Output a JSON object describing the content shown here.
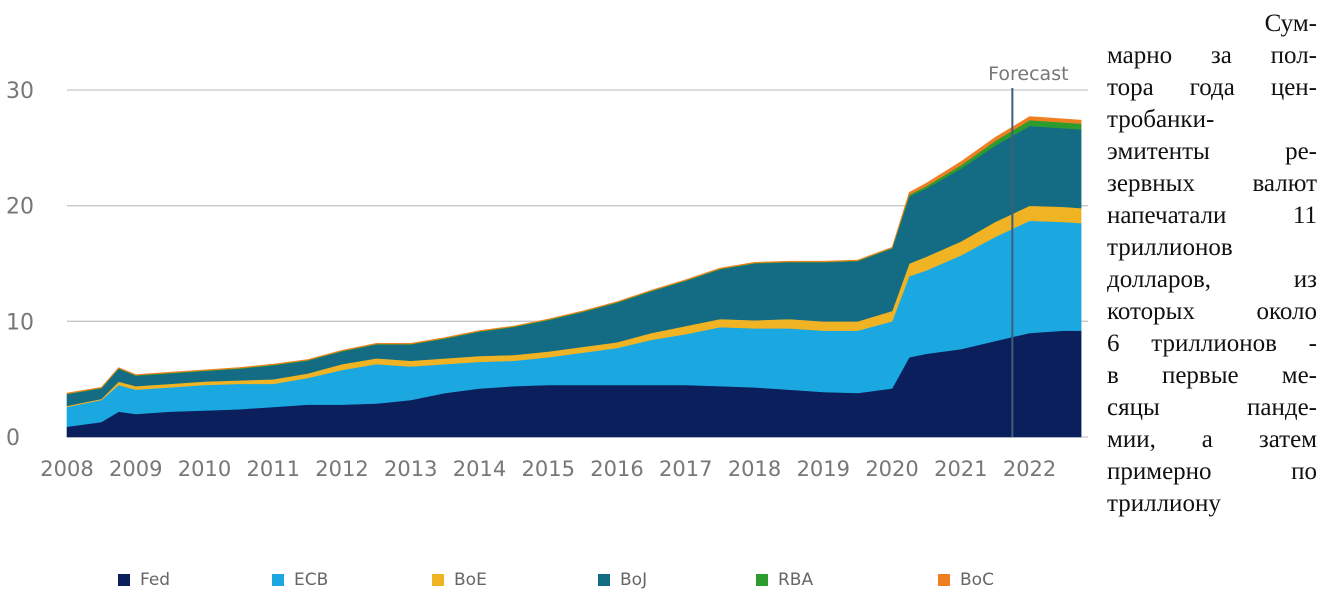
{
  "chart_data": {
    "type": "area",
    "stacked": true,
    "x": [
      2008.0,
      2008.5,
      2008.75,
      2009.0,
      2009.5,
      2010.0,
      2010.5,
      2011.0,
      2011.5,
      2012.0,
      2012.5,
      2013.0,
      2013.5,
      2014.0,
      2014.5,
      2015.0,
      2015.5,
      2016.0,
      2016.5,
      2017.0,
      2017.5,
      2018.0,
      2018.5,
      2019.0,
      2019.5,
      2020.0,
      2020.25,
      2020.5,
      2021.0,
      2021.5,
      2022.0,
      2022.5,
      2022.75
    ],
    "series": [
      {
        "name": "Fed",
        "color": "#0b1f5c",
        "values": [
          0.9,
          1.3,
          2.2,
          2.0,
          2.2,
          2.3,
          2.4,
          2.6,
          2.8,
          2.8,
          2.9,
          3.2,
          3.8,
          4.2,
          4.4,
          4.5,
          4.5,
          4.5,
          4.5,
          4.5,
          4.4,
          4.3,
          4.1,
          3.9,
          3.8,
          4.2,
          6.9,
          7.2,
          7.6,
          8.3,
          9.0,
          9.2,
          9.2
        ]
      },
      {
        "name": "ECB",
        "color": "#1ba8e0",
        "values": [
          1.7,
          1.9,
          2.3,
          2.1,
          2.1,
          2.2,
          2.2,
          2.0,
          2.3,
          3.0,
          3.4,
          2.9,
          2.5,
          2.3,
          2.2,
          2.4,
          2.8,
          3.2,
          3.9,
          4.4,
          5.1,
          5.1,
          5.3,
          5.3,
          5.4,
          5.8,
          7.0,
          7.2,
          8.1,
          9.0,
          9.7,
          9.4,
          9.3
        ]
      },
      {
        "name": "BoE",
        "color": "#f0b323",
        "values": [
          0.1,
          0.1,
          0.3,
          0.3,
          0.3,
          0.3,
          0.3,
          0.4,
          0.4,
          0.5,
          0.5,
          0.5,
          0.5,
          0.5,
          0.5,
          0.5,
          0.5,
          0.5,
          0.6,
          0.7,
          0.7,
          0.7,
          0.8,
          0.8,
          0.8,
          0.9,
          1.1,
          1.2,
          1.2,
          1.3,
          1.3,
          1.3,
          1.3
        ]
      },
      {
        "name": "BoJ",
        "color": "#136c84",
        "values": [
          1.0,
          0.9,
          1.1,
          0.9,
          0.9,
          0.9,
          1.0,
          1.2,
          1.1,
          1.1,
          1.2,
          1.4,
          1.7,
          2.1,
          2.4,
          2.7,
          3.0,
          3.4,
          3.6,
          3.9,
          4.3,
          4.9,
          4.9,
          5.1,
          5.2,
          5.4,
          5.8,
          5.9,
          6.3,
          6.6,
          6.9,
          6.8,
          6.8
        ]
      },
      {
        "name": "RBA",
        "color": "#2e9b2e",
        "values": [
          0.05,
          0.05,
          0.05,
          0.05,
          0.05,
          0.05,
          0.05,
          0.05,
          0.05,
          0.05,
          0.05,
          0.05,
          0.05,
          0.05,
          0.05,
          0.05,
          0.05,
          0.05,
          0.05,
          0.05,
          0.05,
          0.05,
          0.05,
          0.05,
          0.05,
          0.05,
          0.15,
          0.2,
          0.3,
          0.4,
          0.5,
          0.5,
          0.5
        ]
      },
      {
        "name": "BoC",
        "color": "#f07f23",
        "values": [
          0.05,
          0.05,
          0.05,
          0.05,
          0.05,
          0.05,
          0.05,
          0.05,
          0.05,
          0.05,
          0.05,
          0.05,
          0.05,
          0.05,
          0.05,
          0.05,
          0.05,
          0.05,
          0.05,
          0.05,
          0.05,
          0.05,
          0.05,
          0.05,
          0.05,
          0.05,
          0.2,
          0.25,
          0.3,
          0.3,
          0.3,
          0.3,
          0.3
        ]
      }
    ],
    "x_ticks": [
      "2008",
      "2009",
      "2010",
      "2011",
      "2012",
      "2013",
      "2014",
      "2015",
      "2016",
      "2017",
      "2018",
      "2019",
      "2020",
      "2021",
      "2022"
    ],
    "y_ticks": [
      "0",
      "10",
      "20",
      "30"
    ],
    "ylim": [
      0,
      30
    ],
    "xlim": [
      2008,
      2022.85
    ],
    "grid": true,
    "forecast_label": "Forecast",
    "forecast_x": 2021.75,
    "legend_position": "bottom"
  },
  "side_text": {
    "lines": [
      "Сум-",
      "марно за пол-",
      "тора года цен-",
      "тробанки-",
      "эмитенты ре-",
      "зервных валют",
      "напечатали 11",
      "триллионов",
      "долларов, из",
      "которых около",
      "6 триллионов -",
      "в первые ме-",
      "сяцы панде-",
      "мии, а затем",
      "примерно по",
      "триллиону"
    ]
  }
}
